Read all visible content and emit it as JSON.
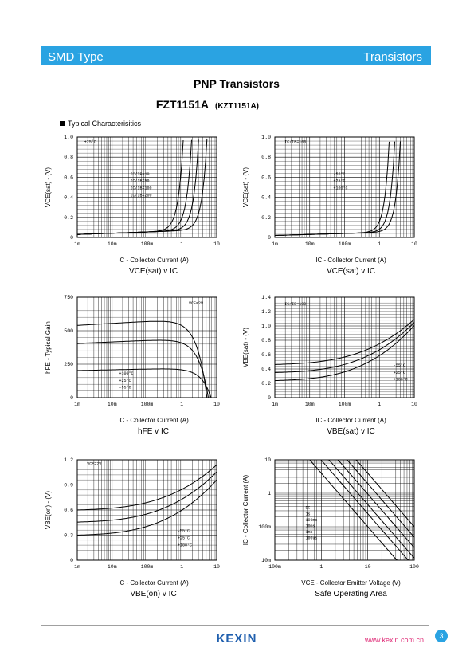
{
  "header": {
    "left": "SMD Type",
    "right": "Transistors"
  },
  "title": "PNP  Transistors",
  "part": "FZT1151A",
  "alt_part": "(KZT1151A)",
  "section": "Typical  Characterisitics",
  "graphs": [
    {
      "ylabel": "VCE(sat) - (V)",
      "yticks": [
        "0",
        "0.2",
        "0.4",
        "0.6",
        "0.8",
        "1.0"
      ],
      "xticks": [
        "1m",
        "10m",
        "100m",
        "1",
        "10"
      ],
      "xlabel": "IC - Collector Current (A)",
      "caption": "VCE(sat) v IC",
      "notes": [
        "+25°C",
        "IC/IB=10",
        "IC/IB=50",
        "IC/IB=100",
        "IC/IB=200"
      ]
    },
    {
      "ylabel": "VCE(sat) - (V)",
      "yticks": [
        "0",
        "0.2",
        "0.4",
        "0.6",
        "0.8",
        "1.0"
      ],
      "xticks": [
        "1m",
        "10m",
        "100m",
        "1",
        "10"
      ],
      "xlabel": "IC - Collector Current (A)",
      "caption": "VCE(sat) v IC",
      "notes": [
        "IC/IB=100",
        "-55°C",
        "+25°C",
        "+100°C"
      ]
    },
    {
      "ylabel": "hFE - Typical Gain",
      "yticks": [
        "0",
        "250",
        "500",
        "750"
      ],
      "xticks": [
        "1m",
        "10m",
        "100m",
        "1",
        "10"
      ],
      "xlabel": "IC - Collector Current (A)",
      "caption": "hFE v IC",
      "notes": [
        "VCE=2V",
        "+100°C",
        "+25°C",
        "-55°C"
      ]
    },
    {
      "ylabel": "VBE(sat) - (V)",
      "yticks": [
        "0",
        "0.2",
        "0.4",
        "0.6",
        "0.8",
        "1.0",
        "1.2",
        "1.4"
      ],
      "xticks": [
        "1m",
        "10m",
        "100m",
        "1",
        "10"
      ],
      "xlabel": "IC - Collector Current (A)",
      "caption": "VBE(sat) v IC",
      "notes": [
        "IC/IB=100",
        "-55°C",
        "+25°C",
        "+100°C"
      ]
    },
    {
      "ylabel": "VBE(on) - (V)",
      "yticks": [
        "0",
        "0.3",
        "0.6",
        "0.9",
        "1.2"
      ],
      "xticks": [
        "1m",
        "10m",
        "100m",
        "1",
        "10"
      ],
      "xlabel": "IC - Collector Current (A)",
      "caption": "VBE(on) v IC",
      "notes": [
        "VCE=2V",
        "-55°C",
        "+25°C",
        "+100°C"
      ]
    },
    {
      "ylabel": "IC - Collector Current (A)",
      "yticks": [
        "10m",
        "100m",
        "1",
        "10"
      ],
      "ylog": true,
      "xticks": [
        "100m",
        "1",
        "10",
        "100"
      ],
      "xlabel": "VCE - Collector Emitter Voltage (V)",
      "caption": "Safe Operating Area",
      "notes": [
        "DC",
        "1s",
        "100ms",
        "10ms",
        "1ms",
        "100us"
      ]
    }
  ],
  "footer": {
    "logo": "KEXIN",
    "url": "www.kexin.com.cn",
    "page": "3"
  }
}
